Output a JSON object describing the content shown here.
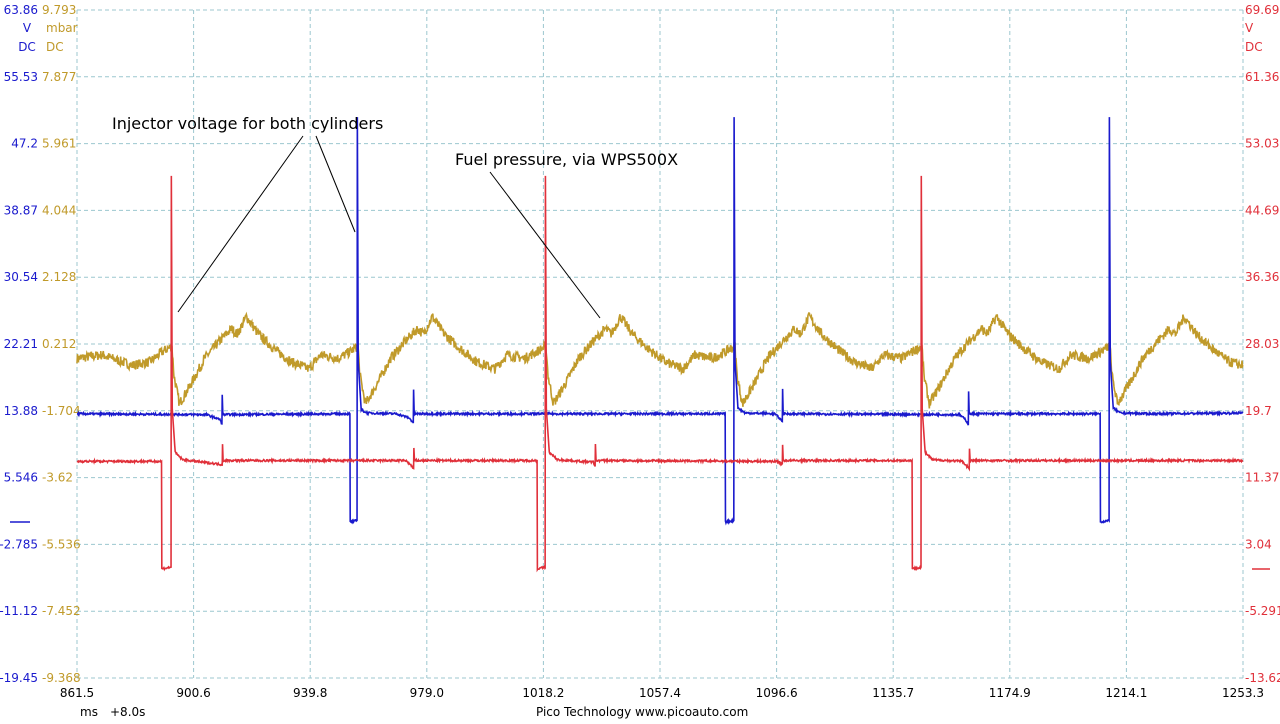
{
  "chart_data": {
    "type": "line",
    "x_axis": {
      "range": [
        861.5,
        1253.3
      ],
      "ticks": [
        "861.5",
        "900.6",
        "939.8",
        "979.0",
        "1018.2",
        "1057.4",
        "1096.6",
        "1135.7",
        "1174.9",
        "1214.1",
        "1253.3"
      ],
      "unit": "ms",
      "offset": "+8.0s"
    },
    "axes": {
      "a": {
        "color": "#1a1acd",
        "range": [
          -19.45,
          63.86
        ],
        "unit": "V",
        "coupling": "DC",
        "ticks": [
          "63.86",
          "55.53",
          "47.2",
          "38.87",
          "30.54",
          "22.21",
          "13.88",
          "5.546",
          "-2.785",
          "-11.12",
          "-19.45"
        ]
      },
      "b": {
        "color": "#c09a2a",
        "range": [
          -9.368,
          9.793
        ],
        "unit": "mbar",
        "coupling": "DC",
        "ticks": [
          "9.793",
          "7.877",
          "5.961",
          "4.044",
          "2.128",
          "0.212",
          "-1.704",
          "-3.62",
          "-5.536",
          "-7.452",
          "-9.368"
        ]
      },
      "c": {
        "color": "#e0303a",
        "range": [
          -13.62,
          69.69
        ],
        "unit": "V",
        "coupling": "DC",
        "ticks": [
          "69.69",
          "61.36",
          "53.03",
          "44.69",
          "36.36",
          "28.03",
          "19.7",
          "11.37",
          "3.04",
          "-5.291",
          "-13.62"
        ]
      }
    },
    "grid": true,
    "series": [
      {
        "axis": "b",
        "color": "#c09a2a",
        "points": [
          [
            861.5,
            -0.2
          ],
          [
            870,
            -0.1
          ],
          [
            880,
            -0.4
          ],
          [
            886,
            -0.3
          ],
          [
            890.4,
            0.0
          ],
          [
            893.4,
            0.15
          ],
          [
            894.1,
            -0.7
          ],
          [
            895.9,
            -1.5
          ],
          [
            899.4,
            -1.0
          ],
          [
            904.4,
            -0.2
          ],
          [
            909.4,
            0.3
          ],
          [
            913.4,
            0.65
          ],
          [
            915.4,
            0.5
          ],
          [
            918.4,
            1.0
          ],
          [
            922.4,
            0.5
          ],
          [
            927.4,
            0.1
          ],
          [
            933.4,
            -0.3
          ],
          [
            939.4,
            -0.5
          ],
          [
            943.4,
            -0.1
          ],
          [
            949.4,
            -0.2
          ],
          [
            953.4,
            0.0
          ],
          [
            955.9,
            0.15
          ],
          [
            956.6,
            -0.7
          ],
          [
            958.4,
            -1.5
          ],
          [
            961.9,
            -1.0
          ],
          [
            966.9,
            -0.2
          ],
          [
            971.9,
            0.3
          ],
          [
            975.9,
            0.65
          ],
          [
            977.9,
            0.5
          ],
          [
            980.9,
            1.0
          ],
          [
            984.9,
            0.5
          ],
          [
            989.9,
            0.1
          ],
          [
            995.9,
            -0.3
          ],
          [
            1001.9,
            -0.5
          ],
          [
            1005.9,
            -0.1
          ],
          [
            1011.9,
            -0.2
          ],
          [
            1016.1,
            0.0
          ],
          [
            1019.1,
            0.15
          ],
          [
            1019.8,
            -0.7
          ],
          [
            1021.6,
            -1.5
          ],
          [
            1025.1,
            -1.0
          ],
          [
            1030.1,
            -0.2
          ],
          [
            1035.1,
            0.3
          ],
          [
            1039.1,
            0.65
          ],
          [
            1041.1,
            0.5
          ],
          [
            1044.1,
            1.0
          ],
          [
            1048.1,
            0.5
          ],
          [
            1053.1,
            0.1
          ],
          [
            1059.1,
            -0.3
          ],
          [
            1065.1,
            -0.5
          ],
          [
            1069.1,
            -0.1
          ],
          [
            1075.1,
            -0.2
          ],
          [
            1079.6,
            0.0
          ],
          [
            1082.6,
            0.15
          ],
          [
            1083.3,
            -0.7
          ],
          [
            1085.1,
            -1.5
          ],
          [
            1088.6,
            -1.0
          ],
          [
            1093.6,
            -0.2
          ],
          [
            1098.6,
            0.3
          ],
          [
            1102.6,
            0.65
          ],
          [
            1104.6,
            0.5
          ],
          [
            1107.6,
            1.0
          ],
          [
            1111.6,
            0.5
          ],
          [
            1116.6,
            0.1
          ],
          [
            1122.6,
            -0.3
          ],
          [
            1128.6,
            -0.5
          ],
          [
            1132.6,
            -0.1
          ],
          [
            1138.6,
            -0.2
          ],
          [
            1142.4,
            0.0
          ],
          [
            1145.4,
            0.15
          ],
          [
            1146.1,
            -0.7
          ],
          [
            1147.9,
            -1.5
          ],
          [
            1151.4,
            -1.0
          ],
          [
            1156.4,
            -0.2
          ],
          [
            1161.4,
            0.3
          ],
          [
            1165.4,
            0.65
          ],
          [
            1167.4,
            0.5
          ],
          [
            1170.4,
            1.0
          ],
          [
            1174.4,
            0.5
          ],
          [
            1179.4,
            0.1
          ],
          [
            1185.4,
            -0.3
          ],
          [
            1191.4,
            -0.5
          ],
          [
            1195.4,
            -0.1
          ],
          [
            1201.4,
            -0.2
          ],
          [
            1205.6,
            0.0
          ],
          [
            1208.6,
            0.15
          ],
          [
            1209.3,
            -0.7
          ],
          [
            1211.1,
            -1.5
          ],
          [
            1214.6,
            -1.0
          ],
          [
            1219.6,
            -0.2
          ],
          [
            1224.6,
            0.3
          ],
          [
            1228.6,
            0.65
          ],
          [
            1230.6,
            0.5
          ],
          [
            1233.6,
            1.0
          ],
          [
            1237.6,
            0.5
          ],
          [
            1242.6,
            0.1
          ],
          [
            1248.6,
            -0.3
          ],
          [
            1253.3,
            -0.4
          ]
        ]
      },
      {
        "axis": "a",
        "color": "#1a1acd",
        "points": [
          [
            861.5,
            13.5
          ],
          [
            905,
            13.4
          ],
          [
            909.5,
            12.8
          ],
          [
            910.2,
            12.2
          ],
          [
            910.3,
            16.0
          ],
          [
            910.5,
            13.4
          ],
          [
            951,
            13.5
          ],
          [
            953.2,
            13.5
          ],
          [
            953.3,
            0.0
          ],
          [
            955.6,
            0.2
          ],
          [
            955.7,
            50.5
          ],
          [
            956.0,
            20
          ],
          [
            957,
            14
          ],
          [
            959,
            13.6
          ],
          [
            969,
            13.5
          ],
          [
            973,
            13.0
          ],
          [
            974.5,
            12.4
          ],
          [
            974.6,
            16.5
          ],
          [
            974.8,
            13.5
          ],
          [
            1077,
            13.5
          ],
          [
            1079.3,
            13.5
          ],
          [
            1079.4,
            0.0
          ],
          [
            1082.2,
            0.2
          ],
          [
            1082.3,
            50.5
          ],
          [
            1082.6,
            20
          ],
          [
            1083.6,
            14.2
          ],
          [
            1086,
            13.6
          ],
          [
            1096,
            13.5
          ],
          [
            1098.5,
            12.6
          ],
          [
            1098.6,
            16.5
          ],
          [
            1098.8,
            13.5
          ],
          [
            1158,
            13.4
          ],
          [
            1160,
            12.8
          ],
          [
            1161,
            12.2
          ],
          [
            1161.1,
            16.3
          ],
          [
            1161.3,
            13.5
          ],
          [
            1205.3,
            13.5
          ],
          [
            1205.4,
            0.0
          ],
          [
            1208.3,
            0.2
          ],
          [
            1208.4,
            50.5
          ],
          [
            1208.7,
            20
          ],
          [
            1209.7,
            14.2
          ],
          [
            1212,
            13.6
          ],
          [
            1222,
            13.5
          ],
          [
            1253.3,
            13.6
          ]
        ]
      },
      {
        "axis": "c",
        "color": "#e0303a",
        "points": [
          [
            861.5,
            13.4
          ],
          [
            889.9,
            13.4
          ],
          [
            890.0,
            0.0
          ],
          [
            893.1,
            0.2
          ],
          [
            893.2,
            49.0
          ],
          [
            893.5,
            20
          ],
          [
            894.5,
            14.5
          ],
          [
            897,
            13.6
          ],
          [
            910.3,
            13.0
          ],
          [
            910.4,
            15.5
          ],
          [
            910.6,
            13.5
          ],
          [
            972,
            13.5
          ],
          [
            974,
            12.8
          ],
          [
            974.6,
            12.4
          ],
          [
            974.7,
            15.0
          ],
          [
            974.9,
            13.5
          ],
          [
            1016.1,
            13.5
          ],
          [
            1016.2,
            0.0
          ],
          [
            1018.8,
            0.2
          ],
          [
            1018.9,
            49.0
          ],
          [
            1019.2,
            20
          ],
          [
            1020.2,
            14.5
          ],
          [
            1023,
            13.6
          ],
          [
            1035,
            13.3
          ],
          [
            1035.6,
            12.8
          ],
          [
            1035.7,
            15.5
          ],
          [
            1035.9,
            13.5
          ],
          [
            1097,
            13.4
          ],
          [
            1098.5,
            13.0
          ],
          [
            1098.6,
            15.5
          ],
          [
            1098.8,
            13.5
          ],
          [
            1142.1,
            13.5
          ],
          [
            1142.2,
            0.0
          ],
          [
            1145.1,
            0.2
          ],
          [
            1145.2,
            49.0
          ],
          [
            1145.5,
            20
          ],
          [
            1146.5,
            14.5
          ],
          [
            1149,
            13.6
          ],
          [
            1159,
            13.4
          ],
          [
            1161.3,
            12.5
          ],
          [
            1161.4,
            15
          ],
          [
            1161.6,
            13.5
          ],
          [
            1253.3,
            13.5
          ]
        ]
      }
    ],
    "annotations": [
      "Injector voltage for both cylinders",
      "Fuel pressure, via WPS500X"
    ]
  },
  "footer": {
    "brand": "Pico Technology",
    "url": "www.picoauto.com"
  }
}
